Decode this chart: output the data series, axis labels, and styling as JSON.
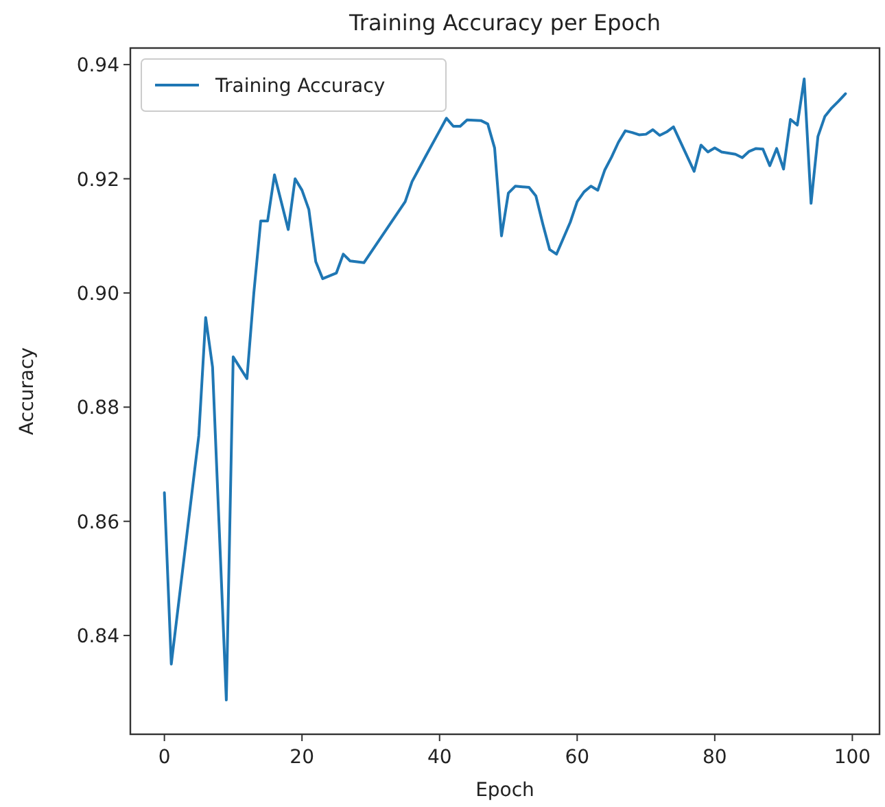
{
  "chart_data": {
    "type": "line",
    "title": "Training Accuracy per Epoch",
    "xlabel": "Epoch",
    "ylabel": "Accuracy",
    "x": [
      0,
      1,
      5,
      6,
      7,
      9,
      10,
      12,
      13,
      14,
      15,
      16,
      18,
      19,
      20,
      21,
      22,
      23,
      25,
      26,
      27,
      29,
      35,
      36,
      38,
      40,
      41,
      42,
      43,
      44,
      46,
      47,
      48,
      49,
      50,
      51,
      53,
      54,
      55,
      56,
      57,
      58,
      59,
      60,
      61,
      62,
      63,
      64,
      65,
      66,
      67,
      68,
      69,
      70,
      71,
      72,
      73,
      74,
      77,
      78,
      79,
      80,
      81,
      83,
      84,
      85,
      86,
      87,
      88,
      89,
      90,
      91,
      92,
      93,
      94,
      95,
      96,
      97,
      98,
      99
    ],
    "series": [
      {
        "name": "Training Accuracy",
        "color": "#1f77b4",
        "values": [
          0.865,
          0.835,
          0.875,
          0.8957,
          0.887,
          0.8287,
          0.8888,
          0.885,
          0.9,
          0.9126,
          0.9126,
          0.9207,
          0.9111,
          0.92,
          0.918,
          0.9146,
          0.9055,
          0.9025,
          0.9035,
          0.9068,
          0.9056,
          0.9053,
          0.916,
          0.9195,
          0.924,
          0.9284,
          0.9306,
          0.9292,
          0.9292,
          0.9303,
          0.9302,
          0.9296,
          0.9254,
          0.91,
          0.9175,
          0.9187,
          0.9185,
          0.917,
          0.9121,
          0.9076,
          0.9068,
          0.9096,
          0.9124,
          0.916,
          0.9177,
          0.9187,
          0.918,
          0.9215,
          0.9238,
          0.9264,
          0.9284,
          0.9281,
          0.9277,
          0.9278,
          0.9286,
          0.9276,
          0.9282,
          0.9291,
          0.9213,
          0.9259,
          0.9247,
          0.9254,
          0.9247,
          0.9243,
          0.9237,
          0.9248,
          0.9253,
          0.9252,
          0.9223,
          0.9253,
          0.9217,
          0.9304,
          0.9294,
          0.9375,
          0.9157,
          0.9274,
          0.9309,
          0.9324,
          0.9336,
          0.9349
        ]
      }
    ],
    "xlim": [
      -4.95,
      103.95
    ],
    "xticks": [
      0,
      20,
      40,
      60,
      80,
      100
    ],
    "ylim": [
      0.8227,
      0.9429
    ],
    "yticks": [
      {
        "value": 0.84,
        "label": "0.84"
      },
      {
        "value": 0.86,
        "label": "0.86"
      },
      {
        "value": 0.88,
        "label": "0.88"
      },
      {
        "value": 0.9,
        "label": "0.90"
      },
      {
        "value": 0.92,
        "label": "0.92"
      },
      {
        "value": 0.94,
        "label": "0.94"
      }
    ],
    "legend": "top left",
    "grid": false,
    "marker": "none",
    "line_style": "solid"
  }
}
